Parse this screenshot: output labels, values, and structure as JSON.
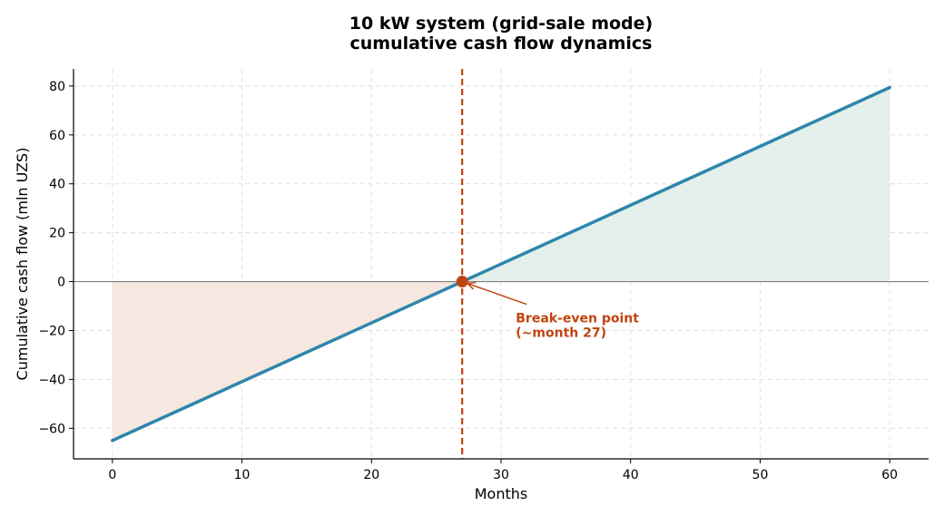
{
  "chart_data": {
    "type": "line",
    "title": [
      "10 kW system (grid-sale mode)",
      "cumulative cash flow dynamics"
    ],
    "xlabel": "Months",
    "ylabel": "Cumulative cash flow (mln UZS)",
    "xlim": [
      -3,
      63
    ],
    "ylim": [
      -72.5,
      87
    ],
    "xticks": [
      0,
      10,
      20,
      30,
      40,
      50,
      60
    ],
    "yticks": [
      -60,
      -40,
      -20,
      0,
      20,
      40,
      60,
      80
    ],
    "grid": true,
    "series": [
      {
        "x": [
          0,
          60
        ],
        "y": [
          -65,
          79.4
        ]
      }
    ],
    "break_even": {
      "x": 27,
      "y": 0
    },
    "annotation": {
      "lines": [
        "Break-even point",
        "(~month 27)"
      ],
      "at": {
        "x": 31,
        "y": -13
      }
    },
    "colors": {
      "line": "#2e86ab",
      "loss_fill": "#f6e7e0",
      "profit_fill": "#e3efea",
      "break_even": "#c0440f",
      "zero_line": "#808080",
      "grid": "#e0e0e0"
    }
  }
}
